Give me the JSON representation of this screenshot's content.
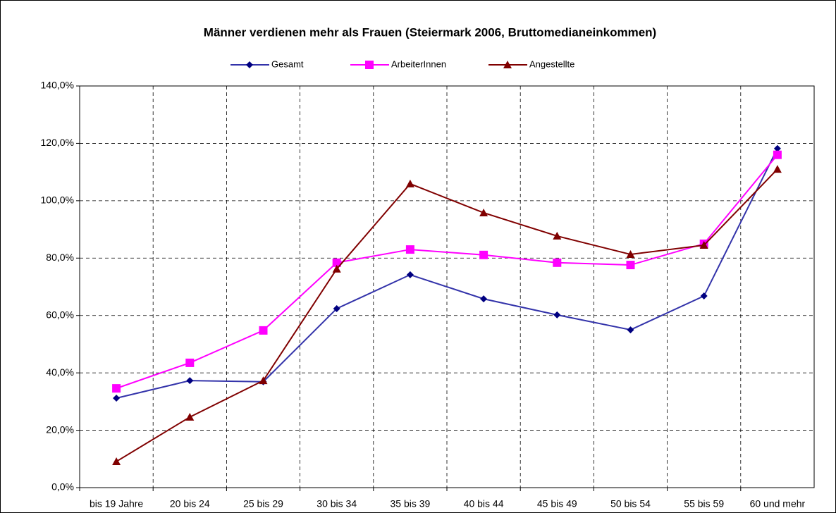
{
  "chart_data": {
    "type": "line",
    "title": "Männer verdienen mehr als Frauen (Steiermark 2006, Bruttomedianeinkommen)",
    "categories": [
      "bis 19 Jahre",
      "20 bis 24",
      "25 bis 29",
      "30 bis 34",
      "35 bis 39",
      "40 bis 44",
      "45 bis 49",
      "50 bis 54",
      "55 bis 59",
      "60 und mehr"
    ],
    "series": [
      {
        "name": "Gesamt",
        "color": "#3333aa",
        "marker": "diamond",
        "marker_color": "#000080",
        "values": [
          31.2,
          37.3,
          36.9,
          62.4,
          74.2,
          65.8,
          60.2,
          55.0,
          66.8,
          118.2
        ]
      },
      {
        "name": "ArbeiterInnen",
        "color": "#ff00ff",
        "marker": "square",
        "marker_color": "#ff00ff",
        "values": [
          34.6,
          43.5,
          54.8,
          78.4,
          83.0,
          81.1,
          78.4,
          77.6,
          85.0,
          116.0
        ]
      },
      {
        "name": "Angestellte",
        "color": "#800000",
        "marker": "triangle",
        "marker_color": "#800000",
        "values": [
          9.1,
          24.6,
          37.3,
          76.2,
          105.9,
          95.8,
          87.7,
          81.3,
          84.5,
          111.0
        ]
      }
    ],
    "ylim": [
      0,
      140
    ],
    "yticks": [
      {
        "value": 0,
        "label": "0,0%"
      },
      {
        "value": 20,
        "label": "20,0%"
      },
      {
        "value": 40,
        "label": "40,0%"
      },
      {
        "value": 60,
        "label": "60,0%"
      },
      {
        "value": 80,
        "label": "80,0%"
      },
      {
        "value": 100,
        "label": "100,0%"
      },
      {
        "value": 120,
        "label": "120,0%"
      },
      {
        "value": 140,
        "label": "140,0%"
      }
    ],
    "grid": true,
    "legend": "top"
  }
}
